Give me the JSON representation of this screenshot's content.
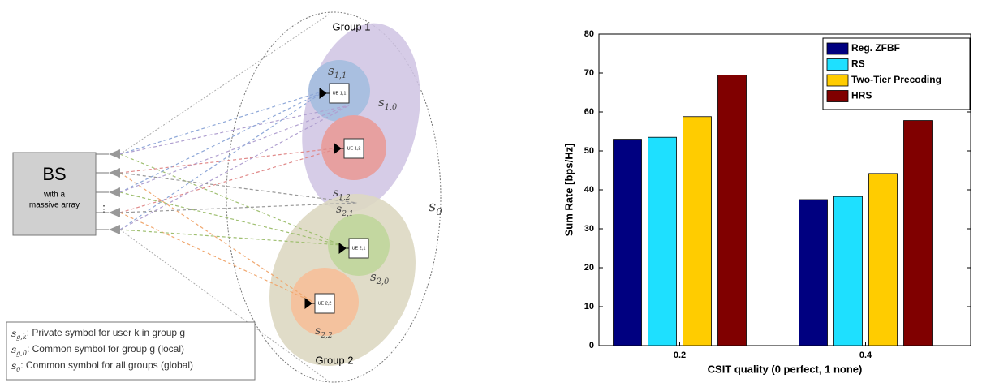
{
  "diagram": {
    "bs": {
      "title": "BS",
      "subtitle": [
        "with a",
        "massive array"
      ],
      "dots": "⋮"
    },
    "groups": [
      "Group 1",
      "Group 2"
    ],
    "ues": [
      "UE 1,1",
      "UE 1,2",
      "UE 2,1",
      "UE 2,2"
    ],
    "symbols": [
      {
        "base": "s",
        "sub": "1,1"
      },
      {
        "base": "s",
        "sub": "1,0"
      },
      {
        "base": "s",
        "sub": "1,2"
      },
      {
        "base": "s",
        "sub": "2,1"
      },
      {
        "base": "s",
        "sub": "2,0"
      },
      {
        "base": "s",
        "sub": "2,2"
      },
      {
        "base": "s",
        "sub": "0"
      }
    ],
    "legend": [
      {
        "symbol": {
          "base": "s",
          "sub": "g,k"
        },
        "text": ": Private symbol for user k in group g"
      },
      {
        "symbol": {
          "base": "s",
          "sub": "g,0"
        },
        "text": ": Common symbol for group g (local)"
      },
      {
        "symbol": {
          "base": "s",
          "sub": "0"
        },
        "text": ": Common symbol for all groups (global)"
      }
    ]
  },
  "chart_data": {
    "type": "bar",
    "x_label": "CSIT quality (0 perfect, 1 none)",
    "y_label": "Sum Rate [bps/Hz]",
    "categories": [
      "0.2",
      "0.4"
    ],
    "series": [
      {
        "name": "Reg. ZFBF",
        "color": "#000080",
        "values": [
          53,
          37.5
        ]
      },
      {
        "name": "RS",
        "color": "#1ee0ff",
        "values": [
          53.5,
          38.3
        ]
      },
      {
        "name": "Two-Tier Precoding",
        "color": "#ffcc00",
        "values": [
          58.8,
          44.2
        ]
      },
      {
        "name": "HRS",
        "color": "#800000",
        "values": [
          69.5,
          57.8
        ]
      }
    ],
    "ylim": [
      0,
      80
    ],
    "yticks": [
      0,
      10,
      20,
      30,
      40,
      50,
      60,
      70,
      80
    ],
    "legend": "upper right"
  }
}
